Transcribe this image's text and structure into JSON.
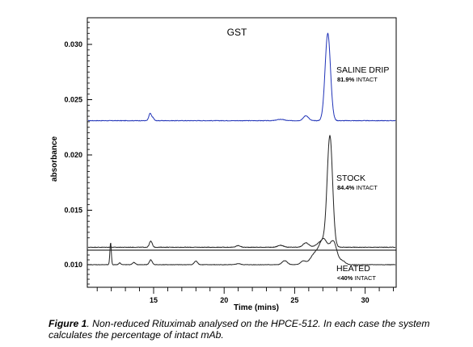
{
  "chart_data": {
    "type": "line",
    "title": "GST",
    "xlabel": "Time (mins)",
    "ylabel": "absorbance",
    "xlim": [
      10.3,
      32.2
    ],
    "x_ticks": [
      15,
      20,
      25,
      30
    ],
    "y_ticks": [
      0.01,
      0.015,
      0.02,
      0.025,
      0.03
    ],
    "y_tick_labels": [
      "0.010",
      "0.015",
      "0.020",
      "0.025",
      "0.030"
    ],
    "grid": false,
    "series": [
      {
        "name": "SALINE DRIP",
        "percent_value": "81.9%",
        "percent_word": "INTACT",
        "color": "#2033b8",
        "baseline": 0.0231,
        "peaks": [
          {
            "x": 14.75,
            "h": 0.00065,
            "w": 0.09
          },
          {
            "x": 14.95,
            "h": 0.00025,
            "w": 0.08
          },
          {
            "x": 24.0,
            "h": 0.00012,
            "w": 0.25
          },
          {
            "x": 25.8,
            "h": 0.00045,
            "w": 0.18
          },
          {
            "x": 27.35,
            "h": 0.0079,
            "w": 0.19
          }
        ]
      },
      {
        "name": "STOCK",
        "percent_value": "84.4%",
        "percent_word": "INTACT",
        "color": "#222222",
        "baseline": 0.01165,
        "peaks": [
          {
            "x": 14.8,
            "h": 0.00055,
            "w": 0.1
          },
          {
            "x": 21.0,
            "h": 0.00015,
            "w": 0.15
          },
          {
            "x": 24.0,
            "h": 0.00018,
            "w": 0.2
          },
          {
            "x": 25.8,
            "h": 0.0004,
            "w": 0.2
          },
          {
            "x": 27.0,
            "h": 0.0006,
            "w": 0.35
          },
          {
            "x": 27.5,
            "h": 0.0099,
            "w": 0.19
          }
        ]
      },
      {
        "name": "HEATED",
        "percent_value": "<40%",
        "percent_word": "INTACT",
        "color": "#222222",
        "baseline": 0.0077,
        "peaks": [
          {
            "x": 11.95,
            "h": 0.0025,
            "w": 0.05
          },
          {
            "x": 12.6,
            "h": 0.0002,
            "w": 0.08
          },
          {
            "x": 13.6,
            "h": 0.00025,
            "w": 0.1
          },
          {
            "x": 14.8,
            "h": 0.00055,
            "w": 0.1
          },
          {
            "x": 18.0,
            "h": 0.0004,
            "w": 0.12
          },
          {
            "x": 21.0,
            "h": 0.00012,
            "w": 0.15
          },
          {
            "x": 24.3,
            "h": 0.00045,
            "w": 0.18
          },
          {
            "x": 25.6,
            "h": 0.0004,
            "w": 0.18
          },
          {
            "x": 26.4,
            "h": 0.0011,
            "w": 0.3
          },
          {
            "x": 27.05,
            "h": 0.0028,
            "w": 0.3
          },
          {
            "x": 27.75,
            "h": 0.0025,
            "w": 0.25
          },
          {
            "x": 28.4,
            "h": 0.0004,
            "w": 0.2
          }
        ]
      }
    ]
  },
  "caption": {
    "lead": "Figure 1",
    "text": ". Non-reduced Rituximab analysed on the HPCE-512. In each case the system calculates the percentage of intact mAb."
  }
}
